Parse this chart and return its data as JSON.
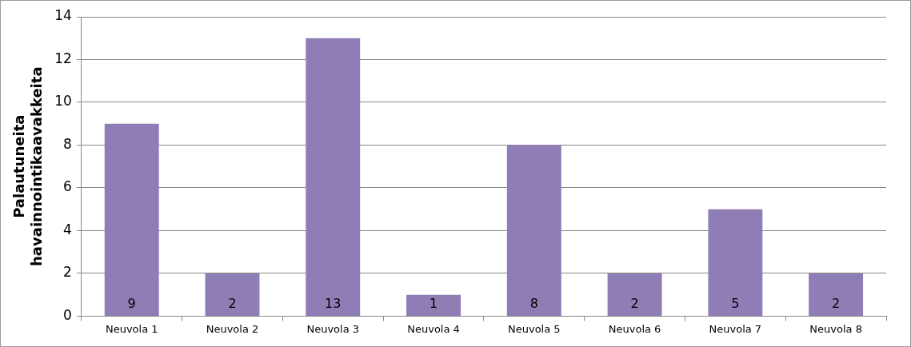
{
  "chart_data": {
    "type": "bar",
    "ylabel": "Palautuneita havainnointikaavakkeita",
    "categories": [
      "Neuvola 1",
      "Neuvola 2",
      "Neuvola 3",
      "Neuvola 4",
      "Neuvola 5",
      "Neuvola 6",
      "Neuvola 7",
      "Neuvola 8"
    ],
    "values": [
      9,
      2,
      13,
      1,
      8,
      2,
      5,
      2
    ],
    "color": "#8f7db5",
    "ylim": [
      0,
      14
    ],
    "yticks": [
      0,
      2,
      4,
      6,
      8,
      10,
      12,
      14
    ],
    "grid": "y",
    "legend": false,
    "data_labels": true
  }
}
